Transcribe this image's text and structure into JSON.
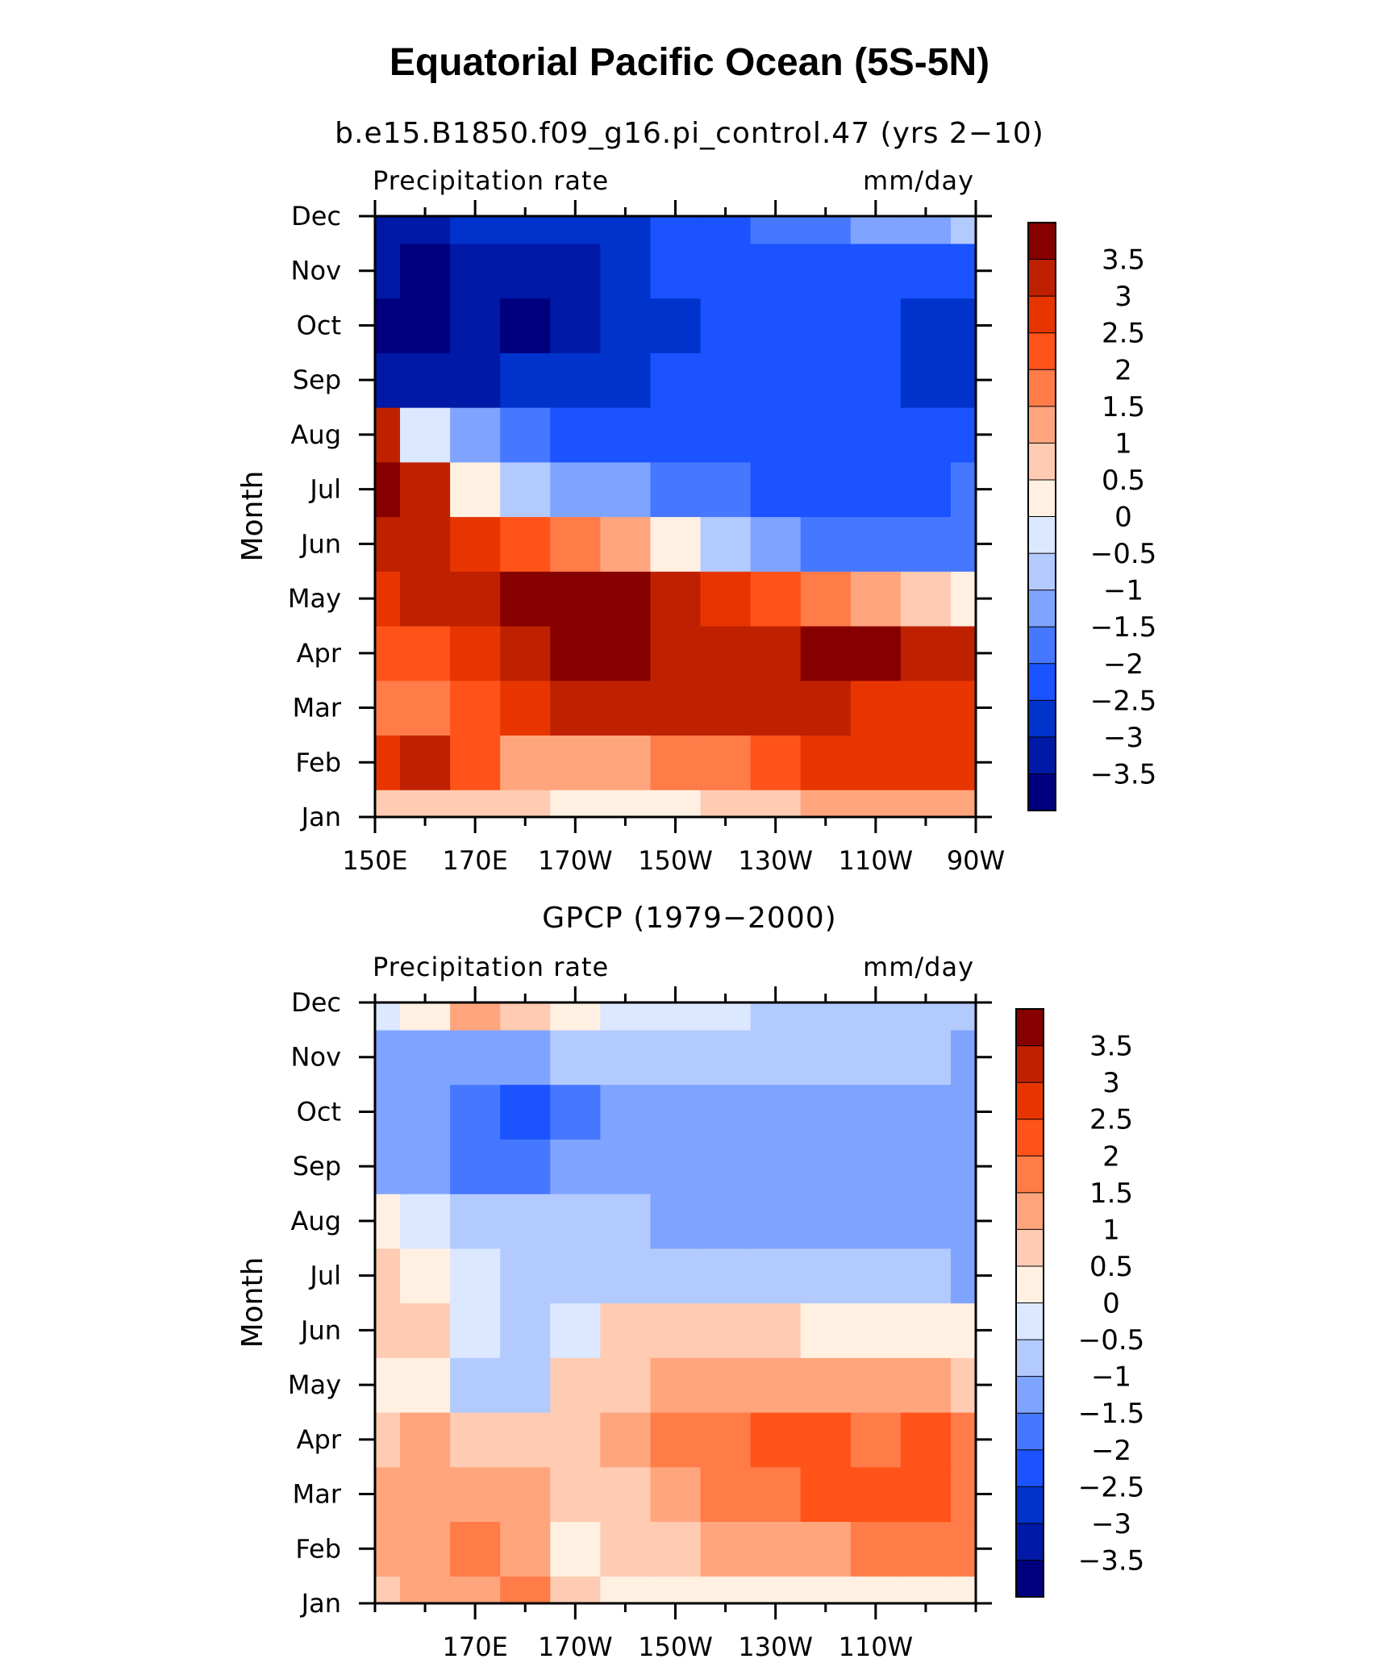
{
  "title": "Equatorial Pacific Ocean (5S-5N)",
  "colorbar": {
    "levels": [
      -3.5,
      -3,
      -2.5,
      -2,
      -1.5,
      -1,
      -0.5,
      0,
      0.5,
      1,
      1.5,
      2,
      2.5,
      3,
      3.5
    ],
    "labels": [
      "3.5",
      "3",
      "2.5",
      "2",
      "1.5",
      "1",
      "0.5",
      "0",
      "−0.5",
      "−1",
      "−1.5",
      "−2",
      "−2.5",
      "−3",
      "−3.5"
    ],
    "colors": [
      "#00007f",
      "#0019a6",
      "#0033cc",
      "#1a53ff",
      "#4677ff",
      "#7fa4ff",
      "#b3caff",
      "#dbe8ff",
      "#fff0e2",
      "#ffcbb2",
      "#ffa57e",
      "#ff7b48",
      "#ff5319",
      "#e83500",
      "#bf2100",
      "#870000"
    ]
  },
  "chart_data": [
    {
      "type": "heatmap",
      "subtitle": "b.e15.B1850.f09_g16.pi_control.47 (yrs 2−10)",
      "left_label": "Precipitation rate",
      "right_label": "mm/day",
      "ylabel": "Month",
      "xlabel": "",
      "x": [
        150,
        160,
        170,
        180,
        190,
        200,
        210,
        220,
        230,
        240,
        250,
        260,
        270
      ],
      "x_ticks": [
        150,
        170,
        190,
        210,
        230,
        250,
        270
      ],
      "x_tick_labels": [
        "150E",
        "170E",
        "170W",
        "150W",
        "130W",
        "110W",
        "90W"
      ],
      "y": [
        "Jan",
        "Feb",
        "Mar",
        "Apr",
        "May",
        "Jun",
        "Jul",
        "Aug",
        "Sep",
        "Oct",
        "Nov",
        "Dec"
      ],
      "z": [
        [
          0.8,
          0.9,
          0.7,
          0.6,
          0.3,
          0.1,
          0.4,
          0.6,
          0.9,
          1.1,
          1.2,
          1.2,
          1.1
        ],
        [
          2.6,
          3.2,
          2.3,
          1.4,
          1.0,
          1.4,
          1.6,
          1.8,
          2.1,
          2.5,
          2.8,
          2.9,
          2.7
        ],
        [
          1.5,
          1.8,
          2.3,
          2.6,
          3.0,
          3.2,
          3.3,
          3.1,
          3.0,
          3.0,
          2.9,
          2.9,
          2.7
        ],
        [
          2.0,
          2.2,
          2.6,
          3.3,
          3.7,
          3.7,
          3.4,
          3.3,
          3.2,
          3.6,
          3.7,
          3.4,
          3.1
        ],
        [
          2.6,
          3.0,
          3.1,
          3.5,
          3.8,
          3.7,
          3.3,
          2.8,
          2.1,
          1.6,
          1.0,
          0.5,
          0.2
        ],
        [
          3.0,
          3.3,
          2.7,
          2.4,
          1.8,
          1.2,
          0.3,
          -0.8,
          -1.4,
          -1.6,
          -1.9,
          -2.0,
          -1.8
        ],
        [
          3.6,
          3.1,
          0.4,
          -0.6,
          -1.1,
          -1.4,
          -1.7,
          -1.9,
          -2.1,
          -2.3,
          -2.3,
          -2.2,
          -1.8
        ],
        [
          3.0,
          -0.5,
          -1.2,
          -1.8,
          -2.2,
          -2.5,
          -2.5,
          -2.5,
          -2.5,
          -2.5,
          -2.5,
          -2.5,
          -2.4
        ],
        [
          -3.4,
          -3.5,
          -3.3,
          -3.0,
          -2.7,
          -2.6,
          -2.5,
          -2.4,
          -2.4,
          -2.4,
          -2.5,
          -2.8,
          -2.6
        ],
        [
          -3.6,
          -3.8,
          -3.4,
          -3.6,
          -3.2,
          -2.9,
          -2.7,
          -2.4,
          -2.3,
          -2.3,
          -2.4,
          -2.8,
          -2.7
        ],
        [
          -3.3,
          -3.7,
          -3.3,
          -3.3,
          -3.2,
          -2.8,
          -2.5,
          -2.3,
          -2.2,
          -2.1,
          -2.1,
          -2.2,
          -2.3
        ],
        [
          -3.1,
          -3.2,
          -3.0,
          -2.9,
          -2.8,
          -2.6,
          -2.4,
          -2.2,
          -2.0,
          -1.8,
          -1.5,
          -1.2,
          -0.8
        ]
      ]
    },
    {
      "type": "heatmap",
      "subtitle": "GPCP (1979−2000)",
      "left_label": "Precipitation rate",
      "right_label": "mm/day",
      "ylabel": "Month",
      "xlabel": "",
      "x": [
        150,
        160,
        170,
        180,
        190,
        200,
        210,
        220,
        230,
        240,
        250,
        260,
        270
      ],
      "x_ticks": [
        170,
        190,
        210,
        230,
        250
      ],
      "x_tick_labels": [
        "170E",
        "170W",
        "150W",
        "130W",
        "110W"
      ],
      "y": [
        "Jan",
        "Feb",
        "Mar",
        "Apr",
        "May",
        "Jun",
        "Jul",
        "Aug",
        "Sep",
        "Oct",
        "Nov",
        "Dec"
      ],
      "z": [
        [
          0.6,
          1.2,
          1.4,
          1.6,
          0.6,
          0.3,
          0.2,
          0.2,
          0.2,
          0.3,
          0.3,
          0.3,
          0.4
        ],
        [
          1.2,
          1.3,
          1.6,
          1.4,
          0.4,
          0.5,
          0.8,
          1.1,
          1.3,
          1.4,
          1.5,
          1.6,
          1.6
        ],
        [
          1.1,
          1.3,
          1.3,
          1.1,
          0.5,
          0.7,
          1.2,
          1.6,
          1.9,
          2.0,
          2.0,
          2.2,
          1.8
        ],
        [
          0.6,
          1.0,
          0.8,
          0.9,
          0.8,
          1.0,
          1.6,
          1.8,
          2.0,
          2.0,
          1.8,
          2.0,
          1.9
        ],
        [
          0.2,
          0.3,
          -0.7,
          -0.6,
          0.6,
          0.8,
          1.1,
          1.2,
          1.2,
          1.2,
          1.1,
          1.0,
          0.9
        ],
        [
          0.6,
          0.5,
          -0.5,
          -0.6,
          -0.2,
          0.6,
          0.8,
          0.7,
          0.5,
          0.3,
          0.2,
          0.1,
          0.0
        ],
        [
          0.6,
          0.3,
          -0.5,
          -0.8,
          -0.8,
          -0.6,
          -0.6,
          -0.7,
          -0.7,
          -0.7,
          -0.8,
          -1.0,
          -1.2
        ],
        [
          0.3,
          -0.2,
          -0.9,
          -1.0,
          -1.0,
          -0.9,
          -1.2,
          -1.3,
          -1.3,
          -1.3,
          -1.3,
          -1.2,
          -1.2
        ],
        [
          -1.2,
          -1.5,
          -1.6,
          -1.8,
          -1.2,
          -1.1,
          -1.3,
          -1.4,
          -1.4,
          -1.4,
          -1.3,
          -1.2,
          -1.3
        ],
        [
          -1.1,
          -1.2,
          -1.6,
          -2.1,
          -1.6,
          -1.1,
          -1.4,
          -1.5,
          -1.5,
          -1.3,
          -1.1,
          -1.2,
          -1.4
        ],
        [
          -1.1,
          -1.3,
          -1.2,
          -1.2,
          -1.0,
          -0.9,
          -0.9,
          -0.9,
          -0.8,
          -0.8,
          -0.8,
          -0.8,
          -1.1
        ],
        [
          -0.3,
          0.4,
          1.2,
          0.7,
          0.2,
          -0.2,
          -0.3,
          -0.5,
          -0.6,
          -0.6,
          -0.6,
          -0.6,
          -0.7
        ]
      ]
    }
  ]
}
